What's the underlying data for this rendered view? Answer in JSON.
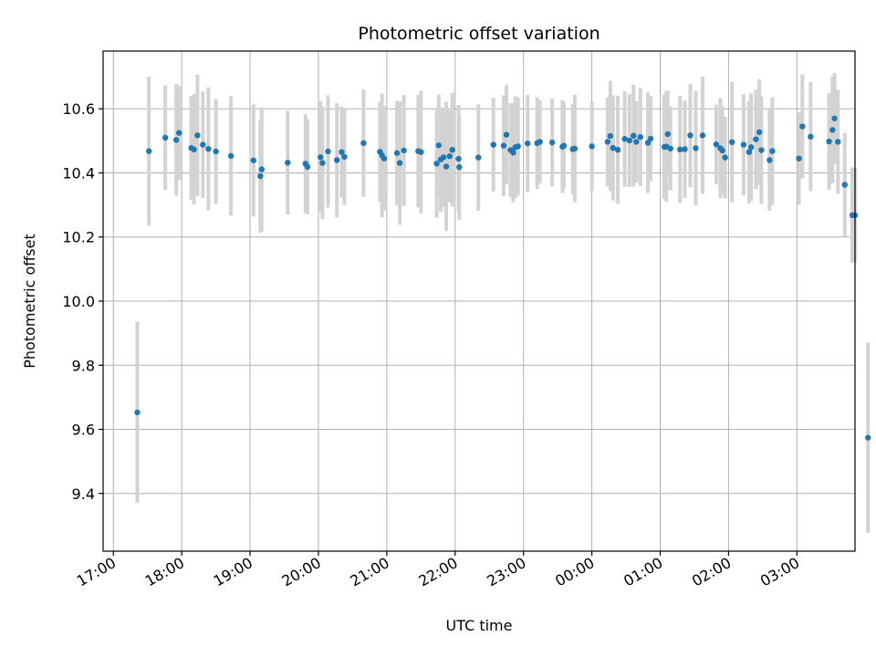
{
  "chart_data": {
    "type": "scatter",
    "title": "Photometric offset variation",
    "xlabel": "UTC time",
    "ylabel": "Photometric offset",
    "x_unit": "hours since 17:00 UTC",
    "xlim": [
      -0.15,
      10.85
    ],
    "ylim": [
      9.22,
      10.78
    ],
    "grid": true,
    "legend": "none",
    "x_ticks": [
      {
        "value": 0,
        "label": "17:00"
      },
      {
        "value": 1,
        "label": "18:00"
      },
      {
        "value": 2,
        "label": "19:00"
      },
      {
        "value": 3,
        "label": "20:00"
      },
      {
        "value": 4,
        "label": "21:00"
      },
      {
        "value": 5,
        "label": "22:00"
      },
      {
        "value": 6,
        "label": "23:00"
      },
      {
        "value": 7,
        "label": "00:00"
      },
      {
        "value": 8,
        "label": "01:00"
      },
      {
        "value": 9,
        "label": "02:00"
      },
      {
        "value": 10,
        "label": "03:00"
      }
    ],
    "y_ticks": [
      {
        "value": 9.4,
        "label": "9.4"
      },
      {
        "value": 9.6,
        "label": "9.6"
      },
      {
        "value": 9.8,
        "label": "9.8"
      },
      {
        "value": 10.0,
        "label": "10.0"
      },
      {
        "value": 10.2,
        "label": "10.2"
      },
      {
        "value": 10.4,
        "label": "10.4"
      },
      {
        "value": 10.6,
        "label": "10.6"
      }
    ],
    "marker_color": "#1f77b4",
    "errorbar_color": "#d3d3d3",
    "series": [
      {
        "name": "offset",
        "x": [
          0.35,
          0.52,
          0.76,
          0.92,
          0.96,
          1.14,
          1.18,
          1.23,
          1.31,
          1.39,
          1.5,
          1.72,
          2.05,
          2.15,
          2.17,
          2.55,
          2.81,
          2.84,
          3.03,
          3.06,
          3.14,
          3.27,
          3.34,
          3.38,
          3.66,
          3.9,
          3.93,
          3.96,
          4.15,
          4.19,
          4.25,
          4.46,
          4.5,
          4.73,
          4.76,
          4.79,
          4.83,
          4.87,
          4.92,
          4.96,
          5.05,
          5.06,
          5.34,
          5.56,
          5.71,
          5.75,
          5.81,
          5.85,
          5.88,
          5.92,
          6.06,
          6.2,
          6.24,
          6.42,
          6.57,
          6.59,
          6.72,
          6.75,
          7.0,
          7.23,
          7.27,
          7.31,
          7.38,
          7.48,
          7.55,
          7.61,
          7.65,
          7.71,
          7.82,
          7.86,
          8.06,
          8.09,
          8.11,
          8.15,
          8.29,
          8.36,
          8.44,
          8.52,
          8.62,
          8.82,
          8.88,
          8.91,
          8.95,
          9.05,
          9.22,
          9.3,
          9.33,
          9.4,
          9.45,
          9.48,
          9.6,
          9.64,
          10.03,
          10.08,
          10.2,
          10.47,
          10.52,
          10.55,
          10.6,
          10.7,
          10.81,
          10.85,
          11.04
        ],
        "y": [
          9.653,
          10.468,
          10.51,
          10.503,
          10.525,
          10.478,
          10.473,
          10.517,
          10.488,
          10.475,
          10.467,
          10.453,
          10.439,
          10.39,
          10.411,
          10.432,
          10.429,
          10.419,
          10.449,
          10.431,
          10.467,
          10.44,
          10.465,
          10.45,
          10.493,
          10.466,
          10.455,
          10.445,
          10.462,
          10.431,
          10.47,
          10.468,
          10.465,
          10.429,
          10.486,
          10.442,
          10.449,
          10.42,
          10.452,
          10.472,
          10.444,
          10.418,
          10.448,
          10.488,
          10.485,
          10.519,
          10.471,
          10.463,
          10.48,
          10.483,
          10.492,
          10.493,
          10.497,
          10.495,
          10.482,
          10.485,
          10.474,
          10.476,
          10.483,
          10.497,
          10.515,
          10.478,
          10.472,
          10.506,
          10.501,
          10.516,
          10.497,
          10.512,
          10.494,
          10.507,
          10.481,
          10.482,
          10.521,
          10.476,
          10.473,
          10.474,
          10.517,
          10.477,
          10.517,
          10.489,
          10.477,
          10.47,
          10.448,
          10.496,
          10.488,
          10.465,
          10.48,
          10.505,
          10.527,
          10.471,
          10.44,
          10.468,
          10.445,
          10.545,
          10.513,
          10.498,
          10.534,
          10.57,
          10.497,
          10.363,
          10.268,
          10.268,
          9.574
        ],
        "err": [
          0.283,
          0.232,
          0.163,
          0.174,
          0.147,
          0.162,
          0.172,
          0.189,
          0.166,
          0.192,
          0.163,
          0.186,
          0.175,
          0.176,
          0.193,
          0.162,
          0.154,
          0.148,
          0.174,
          0.176,
          0.175,
          0.178,
          0.142,
          0.15,
          0.167,
          0.156,
          0.193,
          0.163,
          0.163,
          0.193,
          0.173,
          0.175,
          0.191,
          0.168,
          0.158,
          0.163,
          0.155,
          0.202,
          0.144,
          0.177,
          0.168,
          0.164,
          0.166,
          0.146,
          0.157,
          0.155,
          0.147,
          0.155,
          0.159,
          0.153,
          0.151,
          0.143,
          0.13,
          0.137,
          0.145,
          0.135,
          0.141,
          0.168,
          0.139,
          0.139,
          0.172,
          0.164,
          0.168,
          0.149,
          0.145,
          0.159,
          0.127,
          0.153,
          0.157,
          0.132,
          0.162,
          0.172,
          0.136,
          0.131,
          0.167,
          0.152,
          0.161,
          0.178,
          0.183,
          0.124,
          0.156,
          0.138,
          0.127,
          0.188,
          0.158,
          0.16,
          0.168,
          0.155,
          0.165,
          0.167,
          0.158,
          0.168,
          0.144,
          0.162,
          0.17,
          0.151,
          0.166,
          0.142,
          0.162,
          0.162,
          0.149,
          0.148,
          0.297
        ]
      }
    ]
  }
}
